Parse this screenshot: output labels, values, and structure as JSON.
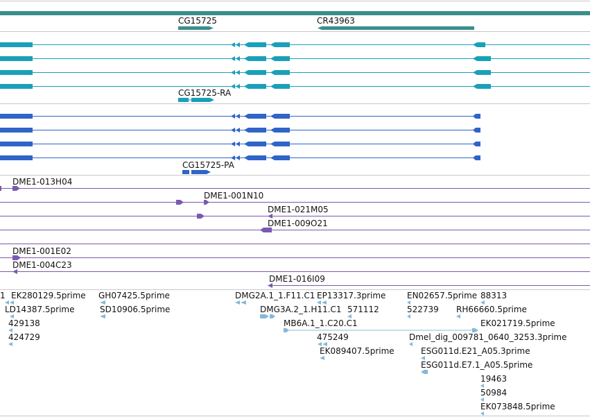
{
  "colors": {
    "track_divider": "#c8c8c8",
    "gene_bar": "#3a8f8c",
    "rna_transcript": "#1aa0b8",
    "protein": "#2f64c8",
    "clone": "#7a59b0",
    "est": "#84b8d8"
  },
  "tracks": {
    "gene": {
      "labels": [
        "CG15725",
        "CR43963"
      ]
    },
    "transcripts": {
      "rna_label": "CG15725-RA",
      "protein_label": "CG15725-PA"
    },
    "clones": {
      "labels": [
        "DME1-013H04",
        "DME1-001N10",
        "DME1-021M05",
        "DME1-009O21",
        "DME1-001E02",
        "DME1-004C23",
        "DME1-016I09"
      ]
    },
    "ests": {
      "labels": [
        "1",
        "EK280129.5prime",
        "LD14387.5prime",
        "429138",
        "424729",
        "GH07425.5prime",
        "SD10906.5prime",
        "DMG2A.1_1.F11.C1",
        "EP13317.3prime",
        "DMG3A.2_1.H11.C1",
        "571112",
        "MB6A.1_1.C20.C1",
        "475249",
        "EK089407.5prime",
        "EN02657.5prime",
        "88313",
        "522739",
        "RH66660.5prime",
        "EK021719.5prime",
        "Dmel_dig_009781_0640_3253.3prime",
        "ESG011d.E21_A05.3prime",
        "ESG011d.E7.1_A05.5prime",
        "19463",
        "50984",
        "EK073848.5prime"
      ]
    }
  }
}
